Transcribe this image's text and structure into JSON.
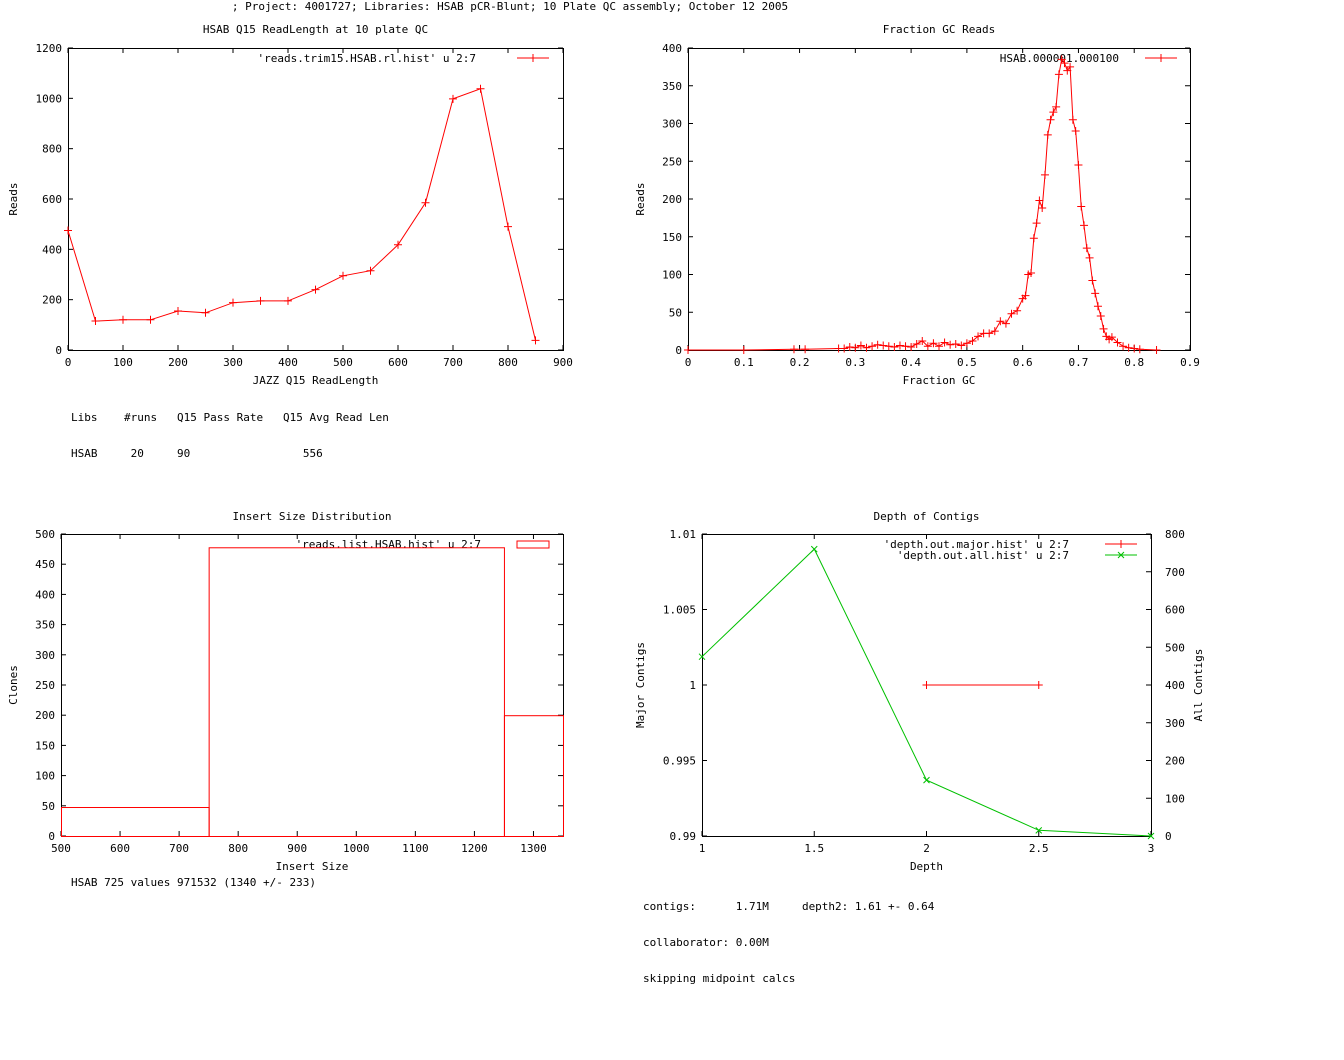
{
  "page": {
    "title": "; Project: 4001727; Libraries: HSAB pCR-Blunt; 10 Plate QC assembly; October 12 2005"
  },
  "info": {
    "readlength_table": {
      "header": [
        "Libs",
        "#runs",
        "Q15 Pass Rate",
        "Q15 Avg Read Len"
      ],
      "row": [
        "HSAB",
        "20",
        "90",
        "556"
      ]
    },
    "insert_summary": "HSAB 725 values 971532 (1340 +/- 233)",
    "contig_lines": [
      "contigs:      1.71M     depth2: 1.61 +- 0.64",
      "collaborator: 0.00M",
      "skipping midpoint calcs"
    ]
  },
  "chart_data": [
    {
      "id": "readlength",
      "type": "line",
      "title": "HSAB Q15 ReadLength at 10 plate QC",
      "xlabel": "JAZZ Q15 ReadLength",
      "ylabel": "Reads",
      "xlim": [
        0,
        900
      ],
      "ylim": [
        0,
        1200
      ],
      "xticks": [
        0,
        100,
        200,
        300,
        400,
        500,
        600,
        700,
        800,
        900
      ],
      "yticks": [
        0,
        200,
        400,
        600,
        800,
        1000,
        1200
      ],
      "grid": false,
      "legend_position": "top-right",
      "series": [
        {
          "name": "'reads.trim15.HSAB.rl.hist' u 2:7",
          "color": "#ff0000",
          "marker": "plus",
          "x": [
            0,
            50,
            100,
            150,
            200,
            250,
            300,
            350,
            400,
            450,
            500,
            550,
            600,
            650,
            700,
            750,
            800,
            850
          ],
          "y": [
            475,
            115,
            120,
            120,
            155,
            148,
            188,
            195,
            195,
            240,
            295,
            315,
            418,
            585,
            998,
            1038,
            490,
            38
          ]
        }
      ]
    },
    {
      "id": "gc",
      "type": "line",
      "title": "Fraction GC Reads",
      "xlabel": "Fraction GC",
      "ylabel": "Reads",
      "xlim": [
        0,
        0.9
      ],
      "ylim": [
        0,
        400
      ],
      "xticks": [
        0,
        0.1,
        0.2,
        0.3,
        0.4,
        0.5,
        0.6,
        0.7,
        0.8,
        0.9
      ],
      "yticks": [
        0,
        50,
        100,
        150,
        200,
        250,
        300,
        350,
        400
      ],
      "grid": false,
      "legend_position": "top-right",
      "series": [
        {
          "name": "HSAB.000001.000100",
          "color": "#ff0000",
          "marker": "plus",
          "x": [
            0,
            0.1,
            0.19,
            0.21,
            0.27,
            0.28,
            0.29,
            0.3,
            0.31,
            0.32,
            0.33,
            0.34,
            0.35,
            0.36,
            0.37,
            0.38,
            0.39,
            0.4,
            0.41,
            0.42,
            0.43,
            0.44,
            0.45,
            0.46,
            0.47,
            0.48,
            0.49,
            0.5,
            0.51,
            0.52,
            0.53,
            0.54,
            0.55,
            0.56,
            0.57,
            0.58,
            0.59,
            0.6,
            0.605,
            0.61,
            0.615,
            0.62,
            0.625,
            0.63,
            0.635,
            0.64,
            0.645,
            0.65,
            0.655,
            0.66,
            0.665,
            0.67,
            0.675,
            0.68,
            0.685,
            0.69,
            0.695,
            0.7,
            0.705,
            0.71,
            0.715,
            0.72,
            0.725,
            0.73,
            0.735,
            0.74,
            0.745,
            0.75,
            0.755,
            0.76,
            0.77,
            0.78,
            0.79,
            0.8,
            0.81,
            0.84
          ],
          "y": [
            0,
            0,
            1,
            1,
            2,
            2,
            4,
            3,
            6,
            3,
            5,
            7,
            6,
            5,
            4,
            6,
            5,
            4,
            8,
            12,
            5,
            9,
            5,
            10,
            7,
            8,
            6,
            9,
            12,
            18,
            22,
            22,
            25,
            38,
            35,
            48,
            52,
            68,
            72,
            100,
            102,
            148,
            168,
            198,
            188,
            232,
            285,
            305,
            315,
            322,
            365,
            385,
            380,
            370,
            375,
            305,
            290,
            245,
            190,
            165,
            135,
            122,
            92,
            75,
            58,
            45,
            28,
            18,
            14,
            17,
            10,
            5,
            3,
            2,
            1,
            0
          ]
        }
      ]
    },
    {
      "id": "insert",
      "type": "bar",
      "title": "Insert Size Distribution",
      "xlabel": "Insert Size",
      "ylabel": "Clones",
      "xlim": [
        500,
        1350
      ],
      "ylim": [
        0,
        500
      ],
      "xticks": [
        500,
        600,
        700,
        800,
        900,
        1000,
        1100,
        1200,
        1300
      ],
      "yticks": [
        0,
        50,
        100,
        150,
        200,
        250,
        300,
        350,
        400,
        450,
        500
      ],
      "grid": false,
      "legend_position": "top-right",
      "series": [
        {
          "name": "'reads.list.HSAB.hist' u 2:7",
          "color": "#ff0000",
          "bars": [
            {
              "x0": 500,
              "x1": 750,
              "y": 48
            },
            {
              "x0": 750,
              "x1": 1250,
              "y": 478
            },
            {
              "x0": 1250,
              "x1": 1350,
              "y": 200
            }
          ]
        }
      ]
    },
    {
      "id": "depth",
      "type": "line",
      "title": "Depth of Contigs",
      "xlabel": "Depth",
      "ylabel": "Major Contigs",
      "y2label": "All Contigs",
      "xlim": [
        1,
        3
      ],
      "ylim": [
        0.99,
        1.01
      ],
      "y2lim": [
        0,
        800
      ],
      "xticks": [
        1,
        1.5,
        2,
        2.5,
        3
      ],
      "yticks": [
        0.99,
        0.995,
        1,
        1.005,
        1.01
      ],
      "y2ticks": [
        0,
        100,
        200,
        300,
        400,
        500,
        600,
        700,
        800
      ],
      "grid": false,
      "legend_position": "top-right",
      "series": [
        {
          "name": "'depth.out.major.hist' u 2:7",
          "color": "#ff0000",
          "marker": "plus",
          "axis": "y",
          "x": [
            2,
            2.5
          ],
          "y": [
            1,
            1
          ]
        },
        {
          "name": "'depth.out.all.hist' u 2:7",
          "color": "#00c000",
          "marker": "cross",
          "axis": "y2",
          "x": [
            1,
            1.5,
            2,
            2.5,
            3
          ],
          "y": [
            475,
            760,
            148,
            15,
            0
          ]
        }
      ]
    }
  ]
}
